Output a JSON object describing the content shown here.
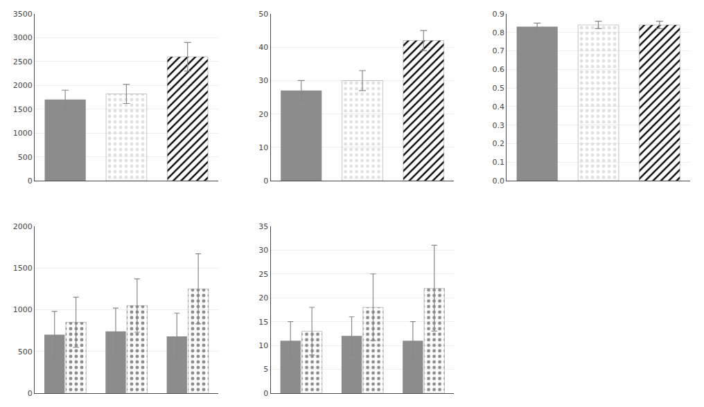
{
  "chart_data": [
    {
      "type": "bar",
      "categories": [
        null,
        null,
        null
      ],
      "values": [
        1700,
        1820,
        2600
      ],
      "errors": [
        200,
        200,
        300
      ],
      "colors": [
        "#8c8c8c",
        "#e0e0e0",
        "#000000"
      ],
      "ylim": [
        0,
        3500
      ],
      "yticks": [
        0,
        500,
        1000,
        1500,
        2000,
        2500,
        3000,
        3500
      ],
      "tick_labels": "y"
    },
    {
      "type": "bar",
      "categories": [
        null,
        null,
        null
      ],
      "values": [
        27,
        30,
        42
      ],
      "errors": [
        3,
        3,
        3
      ],
      "colors": [
        "#8c8c8c",
        "#e0e0e0",
        "#000000"
      ],
      "ylim": [
        0,
        50
      ],
      "yticks": [
        0,
        10,
        20,
        30,
        40,
        50
      ],
      "tick_labels": "y"
    },
    {
      "type": "bar",
      "categories": [
        null,
        null,
        null
      ],
      "values": [
        0.83,
        0.84,
        0.84
      ],
      "errors": [
        0.02,
        0.02,
        0.02
      ],
      "colors": [
        "#8c8c8c",
        "#e0e0e0",
        "#000000"
      ],
      "ylim": [
        0.0,
        0.9
      ],
      "yticks": [
        {
          "value": 0.0,
          "label": "0.0"
        },
        0.1,
        0.2,
        0.3,
        0.4,
        0.5,
        0.6,
        0.7,
        0.8,
        0.9
      ],
      "tick_labels": "y"
    },
    {
      "type": "bar",
      "categories": [
        null,
        null,
        null
      ],
      "series": [
        {
          "color": "#8c8c8c",
          "values": [
            700,
            740,
            680
          ],
          "errors": [
            280,
            280,
            280
          ]
        },
        {
          "color": "#e0e0e0",
          "values": [
            850,
            1050,
            1250
          ],
          "errors": [
            300,
            320,
            420
          ]
        }
      ],
      "ylim": [
        0,
        2000
      ],
      "yticks": [
        0,
        500,
        1000,
        1500,
        2000
      ],
      "tick_labels": "y"
    },
    {
      "type": "bar",
      "categories": [
        null,
        null,
        null
      ],
      "series": [
        {
          "color": "#8c8c8c",
          "values": [
            11,
            12,
            11
          ],
          "errors": [
            4,
            4,
            4
          ]
        },
        {
          "color": "#e0e0e0",
          "values": [
            13,
            18,
            22
          ],
          "errors": [
            5,
            7,
            9
          ]
        }
      ],
      "ylim": [
        0,
        35
      ],
      "yticks": [
        0,
        5,
        10,
        15,
        20,
        25,
        30,
        35
      ],
      "tick_labels": "y"
    }
  ]
}
